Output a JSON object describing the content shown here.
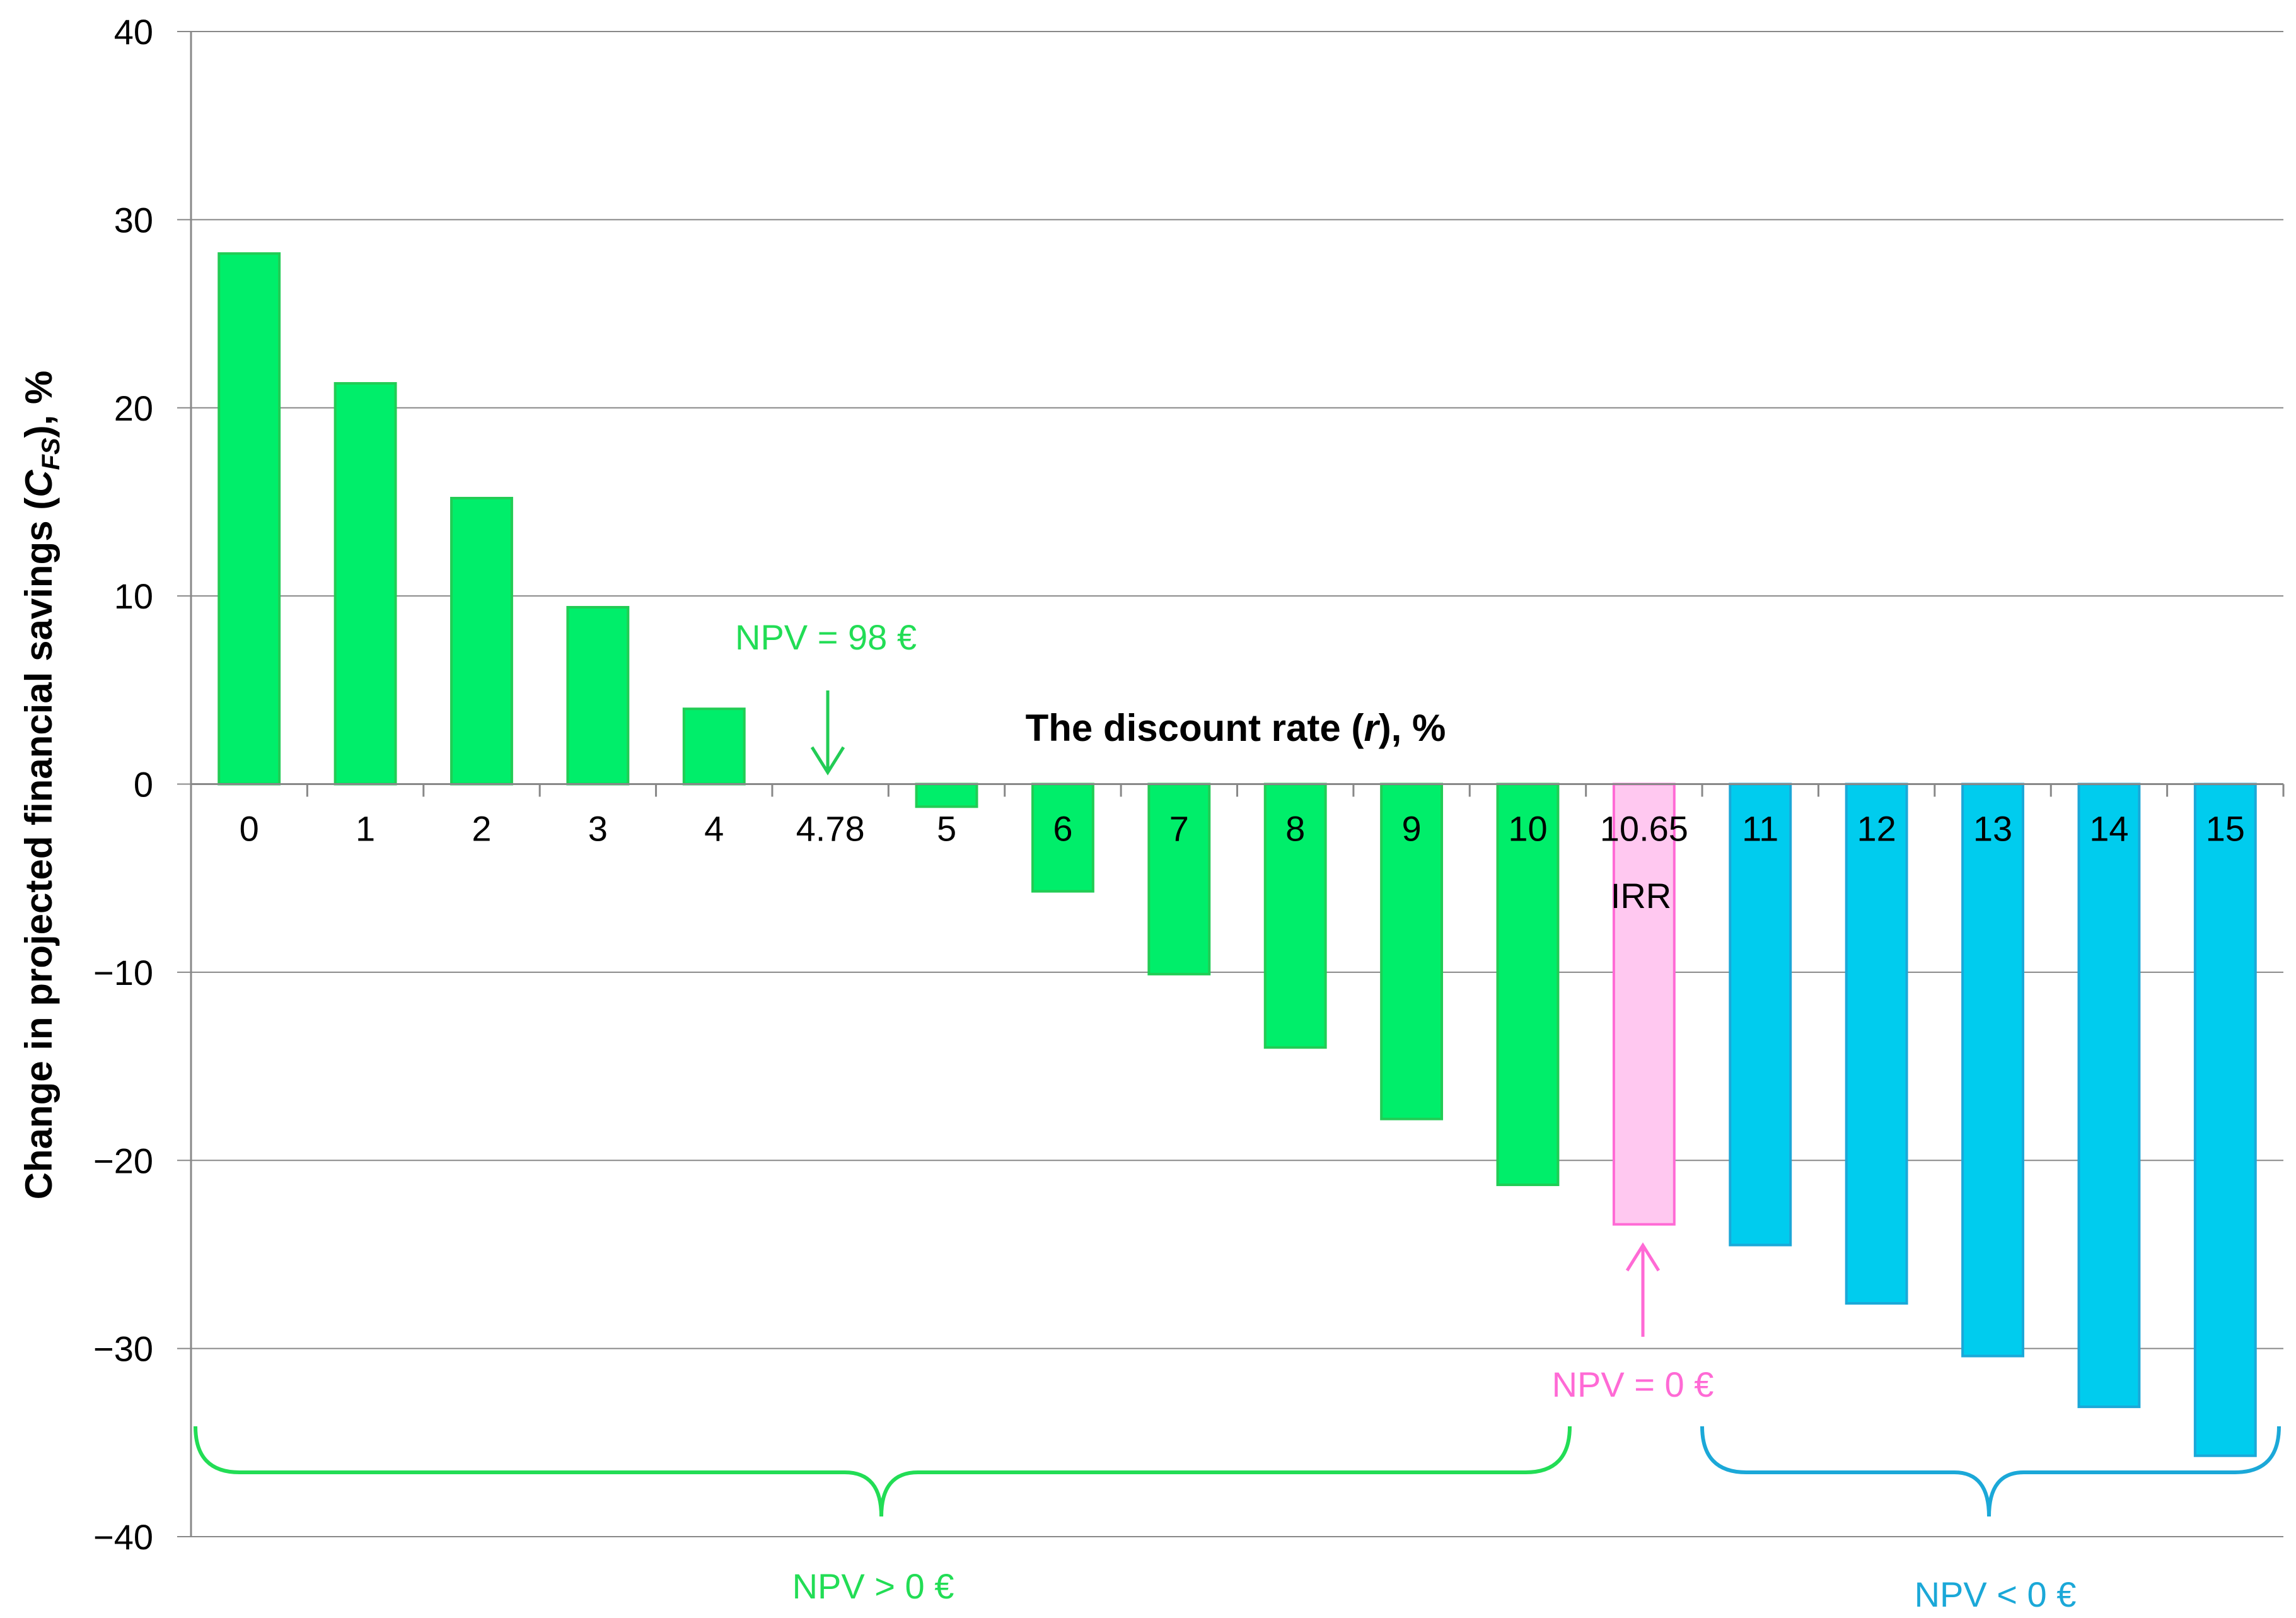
{
  "chart_data": {
    "type": "bar",
    "xlabel": "The discount rate (r), %",
    "ylabel": "Change in projected financial savings (CFS), %",
    "ylim": [
      -40,
      40
    ],
    "yticks": [
      "40",
      "30",
      "20",
      "10",
      "0",
      "−10",
      "−20",
      "−30",
      "−40"
    ],
    "grid": true,
    "categories": [
      "0",
      "1",
      "2",
      "3",
      "4",
      "4.78",
      "5",
      "6",
      "7",
      "8",
      "9",
      "10",
      "10.65",
      "11",
      "12",
      "13",
      "14",
      "15"
    ],
    "values": [
      28.2,
      21.3,
      15.2,
      9.4,
      4.0,
      null,
      -1.2,
      -5.7,
      -10.1,
      -14.0,
      -17.8,
      -21.3,
      -23.4,
      -24.5,
      -27.6,
      -30.4,
      -33.1,
      -35.7
    ],
    "groups": [
      "pos",
      "pos",
      "pos",
      "pos",
      "pos",
      "none",
      "pos",
      "pos",
      "pos",
      "pos",
      "pos",
      "pos",
      "irr",
      "neg",
      "neg",
      "neg",
      "neg",
      "neg"
    ],
    "colors": {
      "pos": "#00EE6A",
      "pos_stroke": "#22CC55",
      "irr": "#FFC8F0",
      "irr_stroke": "#FF6AD5",
      "neg": "#00CCEE",
      "neg_stroke": "#1BA8D8",
      "grid": "#888888"
    },
    "annotations": {
      "npv_98": "NPV = 98 €",
      "irr": "IRR",
      "npv_zero": "NPV = 0 €",
      "npv_positive": "NPV > 0 €",
      "npv_negative": "NPV < 0 €"
    }
  }
}
